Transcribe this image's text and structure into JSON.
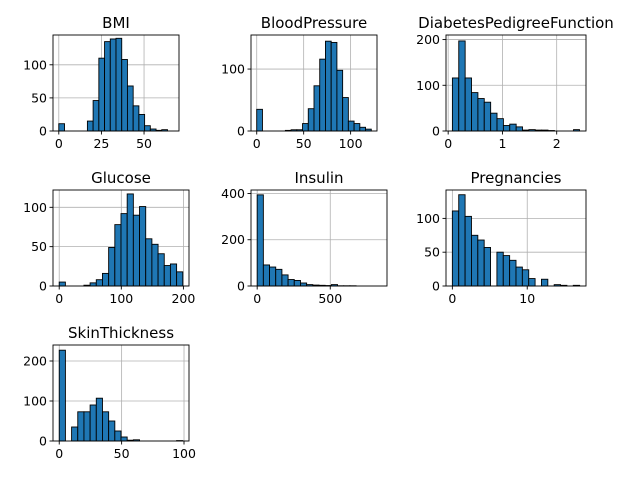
{
  "chart_data": [
    {
      "type": "bar",
      "title": "BMI",
      "xlim": [
        -3.4,
        70.5
      ],
      "ylim": [
        0,
        145
      ],
      "xticks": [
        0,
        25,
        50
      ],
      "yticks": [
        0,
        50,
        100
      ],
      "bin_edges": [
        0,
        3.36,
        6.71,
        10.07,
        13.42,
        16.78,
        20.13,
        23.49,
        26.84,
        30.2,
        33.55,
        36.91,
        40.26,
        43.62,
        46.97,
        50.33,
        53.68,
        57.04,
        60.39,
        63.75,
        67.1
      ],
      "values": [
        11,
        0,
        0,
        0,
        0,
        15,
        46,
        110,
        135,
        139,
        140,
        108,
        68,
        38,
        25,
        8,
        3,
        1,
        2,
        0
      ],
      "color": "#1f77b4"
    },
    {
      "type": "bar",
      "title": "BloodPressure",
      "xlim": [
        -6.1,
        128.1
      ],
      "ylim": [
        0,
        155
      ],
      "xticks": [
        0,
        50,
        100
      ],
      "yticks": [
        0,
        100
      ],
      "bin_edges": [
        0,
        6.1,
        12.2,
        18.3,
        24.4,
        30.5,
        36.6,
        42.7,
        48.8,
        54.9,
        61,
        67.1,
        73.2,
        79.3,
        85.4,
        91.5,
        97.6,
        103.7,
        109.8,
        115.9,
        122
      ],
      "values": [
        35,
        0,
        0,
        0,
        0,
        1,
        2,
        2,
        12,
        36,
        73,
        116,
        145,
        143,
        98,
        54,
        16,
        12,
        6,
        3
      ],
      "color": "#1f77b4"
    },
    {
      "type": "bar",
      "title": "DiabetesPedigreeFunction",
      "xlim": [
        -0.04,
        2.54
      ],
      "ylim": [
        0,
        210
      ],
      "xticks": [
        0,
        1,
        2
      ],
      "yticks": [
        0,
        100,
        200
      ],
      "bin_edges": [
        0.078,
        0.195,
        0.313,
        0.43,
        0.548,
        0.665,
        0.783,
        0.9,
        1.018,
        1.135,
        1.253,
        1.37,
        1.488,
        1.605,
        1.723,
        1.84,
        1.958,
        2.075,
        2.193,
        2.31,
        2.42
      ],
      "values": [
        116,
        197,
        116,
        84,
        71,
        63,
        39,
        27,
        12,
        15,
        9,
        2,
        3,
        2,
        2,
        1,
        0,
        0,
        0,
        3
      ],
      "color": "#1f77b4"
    },
    {
      "type": "bar",
      "title": "Glucose",
      "xlim": [
        -10,
        209
      ],
      "ylim": [
        0,
        122
      ],
      "xticks": [
        0,
        100,
        200
      ],
      "yticks": [
        0,
        50,
        100
      ],
      "bin_edges": [
        0,
        9.95,
        19.9,
        29.85,
        39.8,
        49.75,
        59.7,
        69.65,
        79.6,
        89.55,
        99.5,
        109.45,
        119.4,
        129.35,
        139.3,
        149.25,
        159.2,
        169.15,
        179.1,
        189.05,
        199
      ],
      "values": [
        5,
        0,
        0,
        0,
        1,
        4,
        8,
        16,
        49,
        78,
        92,
        117,
        90,
        101,
        60,
        53,
        41,
        26,
        28,
        18
      ],
      "color": "#1f77b4"
    },
    {
      "type": "bar",
      "title": "Insulin",
      "xlim": [
        -42.3,
        888.3
      ],
      "ylim": [
        0,
        415
      ],
      "xticks": [
        0,
        500
      ],
      "yticks": [
        0,
        200,
        400
      ],
      "bin_edges": [
        0,
        42.3,
        84.6,
        126.9,
        169.2,
        211.5,
        253.8,
        296.1,
        338.4,
        380.7,
        423,
        465.3,
        507.6,
        549.9,
        592.2,
        634.5,
        676.8,
        719.1,
        761.4,
        803.7,
        846
      ],
      "values": [
        394,
        91,
        82,
        72,
        48,
        28,
        24,
        13,
        6,
        4,
        3,
        2,
        6,
        1,
        1,
        1,
        0,
        0,
        0,
        0
      ],
      "color": "#1f77b4"
    },
    {
      "type": "bar",
      "title": "Pregnancies",
      "xlim": [
        -0.85,
        17.85
      ],
      "ylim": [
        0,
        142
      ],
      "xticks": [
        0,
        10
      ],
      "yticks": [
        0,
        50,
        100
      ],
      "bin_edges": [
        0,
        0.85,
        1.7,
        2.55,
        3.4,
        4.25,
        5.1,
        5.95,
        6.8,
        7.65,
        8.5,
        9.35,
        10.2,
        11.05,
        11.9,
        12.75,
        13.6,
        14.45,
        15.3,
        16.15,
        17
      ],
      "values": [
        111,
        135,
        103,
        75,
        68,
        57,
        0,
        50,
        45,
        38,
        28,
        24,
        11,
        0,
        10,
        0,
        2,
        1,
        0,
        1
      ],
      "color": "#1f77b4"
    },
    {
      "type": "bar",
      "title": "SkinThickness",
      "xlim": [
        -5,
        104
      ],
      "ylim": [
        0,
        240
      ],
      "xticks": [
        0,
        50,
        100
      ],
      "yticks": [
        0,
        100,
        200
      ],
      "bin_edges": [
        0,
        4.95,
        9.9,
        14.85,
        19.8,
        24.75,
        29.7,
        34.65,
        39.6,
        44.55,
        49.5,
        54.45,
        59.4,
        64.35,
        69.3,
        74.25,
        79.2,
        84.15,
        89.1,
        94.05,
        99
      ],
      "values": [
        227,
        0,
        35,
        73,
        73,
        90,
        107,
        73,
        50,
        25,
        10,
        2,
        3,
        0,
        0,
        0,
        0,
        0,
        0,
        1
      ],
      "color": "#1f77b4"
    }
  ]
}
